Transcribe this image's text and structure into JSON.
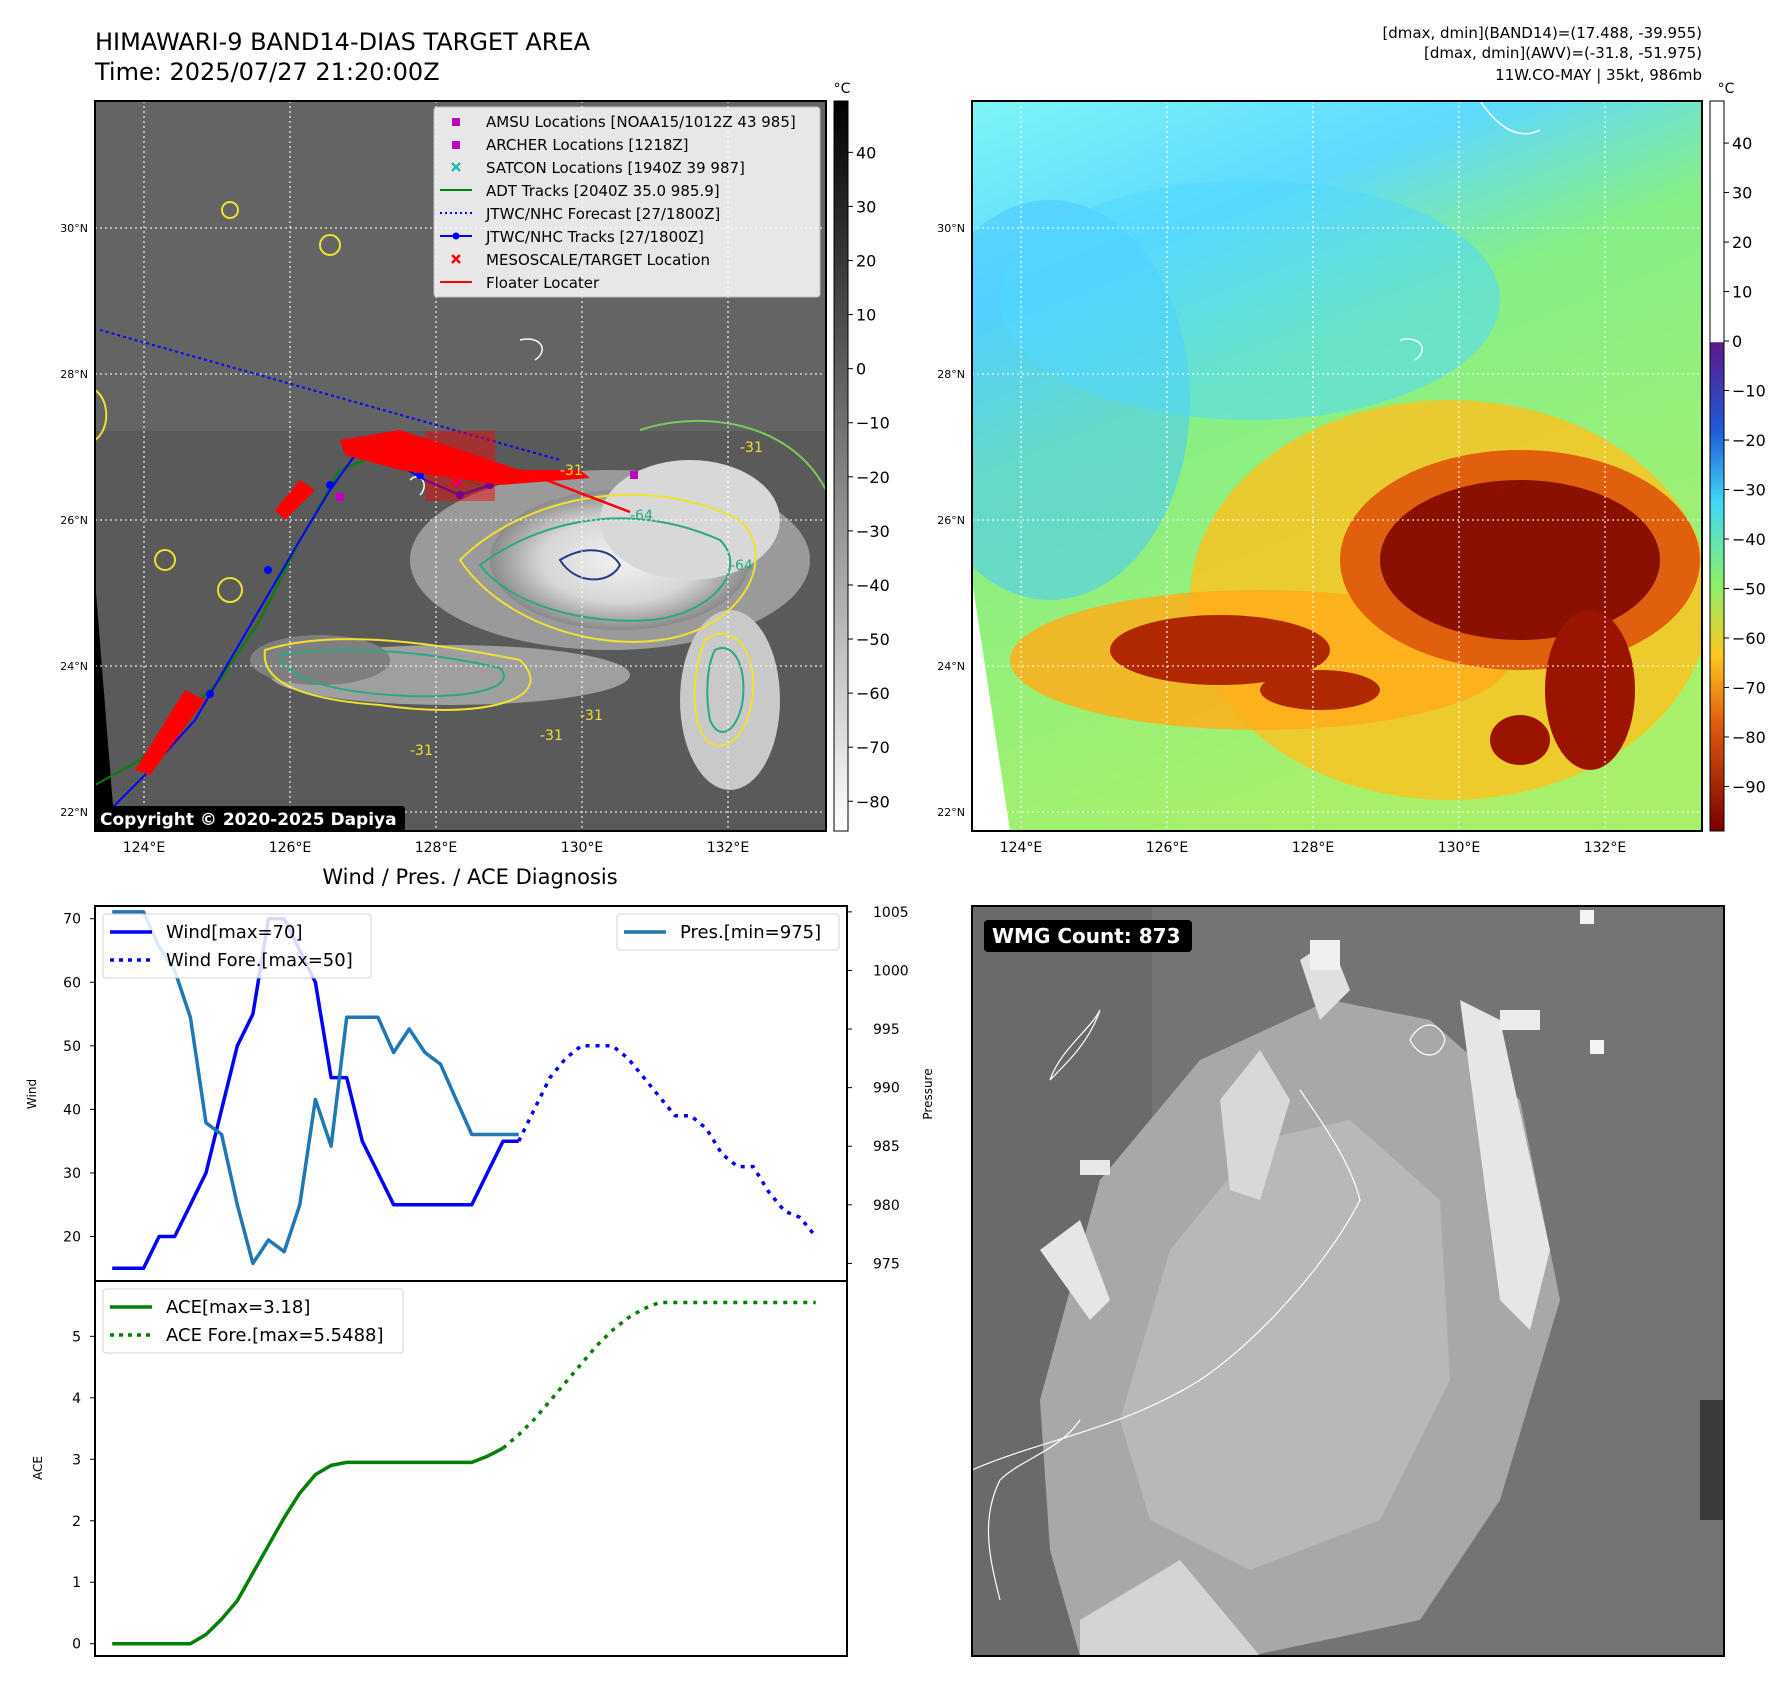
{
  "header": {
    "title_line1": "HIMAWARI-9 BAND14-DIAS TARGET AREA",
    "title_line2": "Time: 2025/07/27 21:20:00Z",
    "right_line1": "[dmax, dmin](BAND14)=(17.488, -39.955)",
    "right_line2": "[dmax, dmin](AWV)=(-31.8, -51.975)",
    "right_line3": "11W.CO-MAY | 35kt, 986mb"
  },
  "map": {
    "lat_ticks": [
      "30°N",
      "28°N",
      "26°N",
      "24°N",
      "22°N"
    ],
    "lon_ticks": [
      "124°E",
      "126°E",
      "128°E",
      "130°E",
      "132°E"
    ],
    "copyright": "Copyright © 2020-2025 Dapiya",
    "contour_labels": [
      "-31",
      "-64",
      "-31",
      "-31",
      "-64",
      "-31",
      "-31"
    ],
    "legend": [
      {
        "label": "AMSU Locations [NOAA15/1012Z 43 985]",
        "color": "#c000c0",
        "marker": "square"
      },
      {
        "label": "ARCHER Locations [1218Z]",
        "color": "#c000c0",
        "marker": "square"
      },
      {
        "label": "SATCON Locations [1940Z 39 987]",
        "color": "#00b3b3",
        "marker": "x"
      },
      {
        "label": "ADT Tracks [2040Z 35.0 985.9]",
        "color": "#008000",
        "marker": "line"
      },
      {
        "label": "JTWC/NHC Forecast [27/1800Z]",
        "color": "#0000ff",
        "marker": "dotted"
      },
      {
        "label": "JTWC/NHC Tracks [27/1800Z]",
        "color": "#0000ff",
        "marker": "line-dot"
      },
      {
        "label": "MESOSCALE/TARGET Location",
        "color": "#ff0000",
        "marker": "x"
      },
      {
        "label": "Floater Locater",
        "color": "#ff0000",
        "marker": "line"
      }
    ]
  },
  "colorbar_bw": {
    "unit": "°C",
    "ticks": [
      "40",
      "30",
      "20",
      "10",
      "0",
      "−10",
      "−20",
      "−30",
      "−40",
      "−50",
      "−60",
      "−70",
      "−80"
    ]
  },
  "colorbar_wv": {
    "unit": "°C",
    "ticks": [
      "40",
      "30",
      "20",
      "10",
      "0",
      "−10",
      "−20",
      "−30",
      "−40",
      "−50",
      "−60",
      "−70",
      "−80",
      "−90"
    ]
  },
  "wmg": {
    "label": "WMG Count: 873"
  },
  "chart_data": [
    {
      "type": "line",
      "title": "Wind / Pres. / ACE Diagnosis",
      "ylabel": "Wind",
      "y2label": "Pressure",
      "ylim": [
        13,
        72
      ],
      "y2lim": [
        973.5,
        1005.5
      ],
      "yticks": [
        "70",
        "60",
        "50",
        "40",
        "30",
        "20"
      ],
      "y2ticks": [
        "1005",
        "1000",
        "995",
        "990",
        "985",
        "980",
        "975"
      ],
      "x": [
        0,
        1,
        2,
        3,
        4,
        5,
        6,
        7,
        8,
        9,
        10,
        11,
        12,
        13,
        14,
        15,
        16,
        17,
        18,
        19,
        20,
        21,
        22,
        23,
        24,
        25,
        26,
        27,
        28,
        29,
        30,
        31,
        32,
        33,
        34,
        35,
        36,
        37,
        38,
        39,
        40,
        41,
        42,
        43,
        44,
        45
      ],
      "series": [
        {
          "name": "Wind[max=70]",
          "color": "#0000ff",
          "style": "solid",
          "x": [
            0,
            1,
            2,
            3,
            4,
            5,
            6,
            7,
            8,
            9,
            10,
            11,
            12,
            13,
            14,
            15,
            16,
            17,
            18,
            19,
            20,
            21,
            22,
            23,
            24,
            25,
            26
          ],
          "values": [
            15,
            15,
            15,
            20,
            20,
            25,
            30,
            40,
            50,
            55,
            70,
            70,
            65,
            60,
            45,
            45,
            35,
            30,
            25,
            25,
            25,
            25,
            25,
            25,
            30,
            35,
            35
          ]
        },
        {
          "name": "Wind Fore.[max=50]",
          "color": "#0000ff",
          "style": "dotted",
          "x": [
            26,
            27,
            28,
            29,
            30,
            31,
            32,
            33,
            34,
            35,
            36,
            37,
            38,
            39,
            40,
            41,
            42,
            43,
            44,
            45
          ],
          "values": [
            35,
            40,
            45,
            48,
            50,
            50,
            50,
            48,
            45,
            42,
            39,
            39,
            37,
            33,
            31,
            31,
            27,
            24,
            23,
            20
          ]
        },
        {
          "name": "Pres.[min=975]",
          "color": "#1f77b4",
          "style": "solid",
          "x": [
            0,
            1,
            2,
            3,
            4,
            5,
            6,
            7,
            8,
            9,
            10,
            11,
            12,
            13,
            14,
            15,
            16,
            17,
            18,
            19,
            20,
            21,
            22,
            23,
            24,
            25,
            26
          ],
          "values": [
            1005,
            1005,
            1005,
            1002,
            1000,
            996,
            987,
            986,
            980,
            975,
            977,
            976,
            980,
            989,
            985,
            996,
            996,
            996,
            993,
            995,
            993,
            992,
            989,
            986,
            986,
            986,
            986
          ]
        }
      ]
    },
    {
      "type": "line",
      "ylabel": "ACE",
      "ylim": [
        -0.2,
        5.9
      ],
      "yticks": [
        "5",
        "4",
        "3",
        "2",
        "1",
        "0"
      ],
      "series": [
        {
          "name": "ACE[max=3.18]",
          "color": "#008000",
          "style": "solid",
          "x": [
            0,
            1,
            2,
            3,
            4,
            5,
            6,
            7,
            8,
            9,
            10,
            11,
            12,
            13,
            14,
            15,
            16,
            17,
            18,
            19,
            20,
            21,
            22,
            23,
            24,
            25
          ],
          "values": [
            0,
            0,
            0,
            0,
            0,
            0,
            0.15,
            0.4,
            0.7,
            1.15,
            1.6,
            2.05,
            2.45,
            2.75,
            2.9,
            2.95,
            2.95,
            2.95,
            2.95,
            2.95,
            2.95,
            2.95,
            2.95,
            2.95,
            3.05,
            3.18
          ]
        },
        {
          "name": "ACE Fore.[max=5.5488]",
          "color": "#008000",
          "style": "dotted",
          "x": [
            25,
            26,
            27,
            28,
            29,
            30,
            31,
            32,
            33,
            34,
            35,
            36,
            37,
            38,
            39,
            40,
            41,
            42,
            43,
            44,
            45
          ],
          "values": [
            3.18,
            3.4,
            3.65,
            3.95,
            4.25,
            4.55,
            4.85,
            5.1,
            5.3,
            5.45,
            5.55,
            5.55,
            5.55,
            5.55,
            5.55,
            5.55,
            5.55,
            5.55,
            5.55,
            5.55,
            5.55
          ]
        }
      ]
    }
  ]
}
